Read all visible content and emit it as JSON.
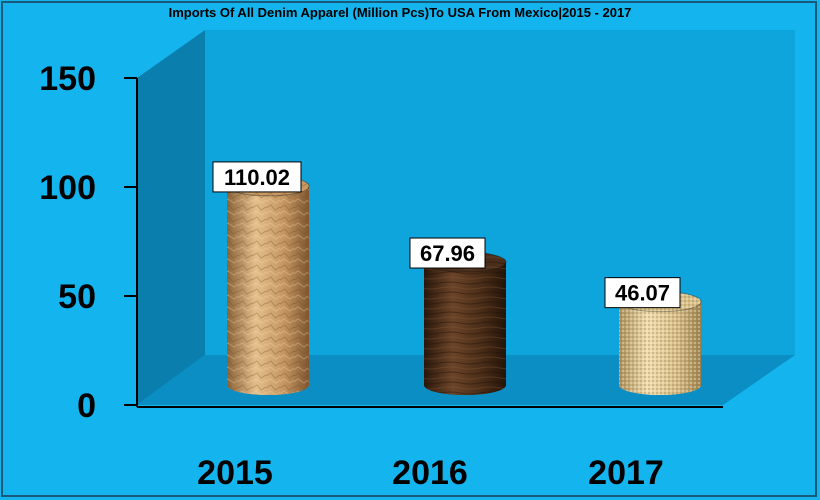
{
  "colors": {
    "background": "#14b4ee",
    "back_wall": "#0ea5dd",
    "side_wall": "#0a7fae",
    "floor": "#0b8ec4",
    "frame": "#1a5a78",
    "label_box": "#ffffff"
  },
  "chart_data": {
    "type": "bar",
    "style": "3d-cylinder",
    "title": "Imports Of All Denim Apparel (Million Pcs)To USA From Mexico|2015 - 2017",
    "categories": [
      "2015",
      "2016",
      "2017"
    ],
    "values": [
      110.02,
      67.96,
      46.07
    ],
    "value_labels": [
      "110.02",
      "67.96",
      "46.07"
    ],
    "bar_textures": [
      "crinkled-paper",
      "dark-wood",
      "woven-sand"
    ],
    "bar_colors": [
      "#c89a63",
      "#4a2e1a",
      "#d8c08a"
    ],
    "ylim": [
      0,
      150
    ],
    "yticks": [
      0,
      50,
      100,
      150
    ],
    "ytick_labels": [
      "0",
      "50",
      "100",
      "150"
    ],
    "xlabel": "",
    "ylabel": "",
    "grid": false,
    "legend": "none"
  }
}
